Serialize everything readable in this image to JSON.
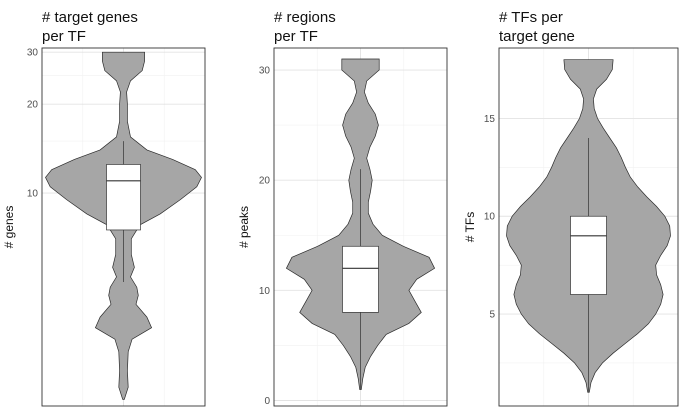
{
  "chart_data": [
    {
      "type": "violin",
      "title_lines": [
        "# target genes",
        "per TF"
      ],
      "ylabel": "# genes",
      "scale": "log",
      "ylim": [
        1.9,
        31
      ],
      "yticks": [
        10,
        20,
        30
      ],
      "ytick_labels": [
        "10",
        "20",
        "30"
      ],
      "grid_major": [
        10,
        20,
        30
      ],
      "grid_minor": [
        15,
        25
      ],
      "violin_range": [
        2,
        30
      ],
      "density": [
        [
          2,
          0.01
        ],
        [
          2.2,
          0.06
        ],
        [
          2.5,
          0.05
        ],
        [
          2.9,
          0.06
        ],
        [
          3.2,
          0.11
        ],
        [
          3.5,
          0.36
        ],
        [
          3.8,
          0.3
        ],
        [
          4.2,
          0.16
        ],
        [
          4.5,
          0.19
        ],
        [
          4.8,
          0.17
        ],
        [
          5.2,
          0.09
        ],
        [
          5.6,
          0.14
        ],
        [
          6.2,
          0.1
        ],
        [
          7,
          0.1
        ],
        [
          7.8,
          0.21
        ],
        [
          8.5,
          0.47
        ],
        [
          9.5,
          0.73
        ],
        [
          10.5,
          0.94
        ],
        [
          11.3,
          1.0
        ],
        [
          12,
          0.92
        ],
        [
          13,
          0.63
        ],
        [
          14,
          0.3
        ],
        [
          15.5,
          0.09
        ],
        [
          17.5,
          0.05
        ],
        [
          20,
          0.05
        ],
        [
          22,
          0.04
        ],
        [
          24,
          0.09
        ],
        [
          26,
          0.24
        ],
        [
          28,
          0.27
        ],
        [
          30,
          0.27
        ]
      ],
      "box": {
        "whisker_low": 5,
        "q1": 7.5,
        "median": 11,
        "q3": 12.5,
        "whisker_high": 15
      }
    },
    {
      "type": "violin",
      "title_lines": [
        "# regions",
        "per TF"
      ],
      "ylabel": "# peaks",
      "scale": "linear",
      "ylim": [
        -0.5,
        32
      ],
      "yticks": [
        0,
        10,
        20,
        30
      ],
      "ytick_labels": [
        "0",
        "10",
        "20",
        "30"
      ],
      "grid_major": [
        0,
        10,
        20,
        30
      ],
      "grid_minor": [
        5,
        15,
        25
      ],
      "violin_range": [
        1,
        31
      ],
      "density": [
        [
          1,
          0.01
        ],
        [
          2,
          0.03
        ],
        [
          3,
          0.06
        ],
        [
          4,
          0.13
        ],
        [
          5,
          0.22
        ],
        [
          6,
          0.33
        ],
        [
          7,
          0.62
        ],
        [
          8,
          0.78
        ],
        [
          9,
          0.7
        ],
        [
          10,
          0.62
        ],
        [
          11,
          0.72
        ],
        [
          12,
          0.95
        ],
        [
          13,
          0.88
        ],
        [
          14,
          0.55
        ],
        [
          15,
          0.28
        ],
        [
          16,
          0.16
        ],
        [
          17,
          0.1
        ],
        [
          18,
          0.1
        ],
        [
          19,
          0.13
        ],
        [
          20,
          0.15
        ],
        [
          21,
          0.12
        ],
        [
          22,
          0.08
        ],
        [
          23,
          0.12
        ],
        [
          24,
          0.19
        ],
        [
          25,
          0.23
        ],
        [
          26,
          0.19
        ],
        [
          27,
          0.1
        ],
        [
          28,
          0.05
        ],
        [
          29,
          0.08
        ],
        [
          30,
          0.24
        ],
        [
          31,
          0.24
        ]
      ],
      "box": {
        "whisker_low": 1,
        "q1": 8,
        "median": 12,
        "q3": 14,
        "whisker_high": 21
      }
    },
    {
      "type": "violin",
      "title_lines": [
        "# TFs per",
        "target gene"
      ],
      "ylabel": "# TFs",
      "scale": "linear",
      "ylim": [
        0.3,
        18.6
      ],
      "yticks": [
        5,
        10,
        15
      ],
      "ytick_labels": [
        "5",
        "10",
        "15"
      ],
      "grid_major": [
        5,
        10,
        15
      ],
      "grid_minor": [
        2.5,
        7.5,
        12.5
      ],
      "violin_range": [
        1,
        18
      ],
      "density": [
        [
          1,
          0.01
        ],
        [
          1.5,
          0.03
        ],
        [
          2,
          0.08
        ],
        [
          2.5,
          0.17
        ],
        [
          3,
          0.3
        ],
        [
          3.5,
          0.45
        ],
        [
          4,
          0.6
        ],
        [
          4.5,
          0.73
        ],
        [
          5,
          0.82
        ],
        [
          5.5,
          0.88
        ],
        [
          6,
          0.91
        ],
        [
          6.5,
          0.88
        ],
        [
          7,
          0.83
        ],
        [
          7.5,
          0.82
        ],
        [
          8,
          0.88
        ],
        [
          8.5,
          0.96
        ],
        [
          9,
          1.0
        ],
        [
          9.5,
          0.99
        ],
        [
          10,
          0.93
        ],
        [
          10.5,
          0.83
        ],
        [
          11,
          0.71
        ],
        [
          11.5,
          0.6
        ],
        [
          12,
          0.51
        ],
        [
          12.5,
          0.45
        ],
        [
          13,
          0.4
        ],
        [
          13.5,
          0.34
        ],
        [
          14,
          0.26
        ],
        [
          14.5,
          0.18
        ],
        [
          15,
          0.11
        ],
        [
          15.5,
          0.07
        ],
        [
          16,
          0.06
        ],
        [
          16.5,
          0.1
        ],
        [
          17,
          0.22
        ],
        [
          17.5,
          0.29
        ],
        [
          18,
          0.3
        ]
      ],
      "box": {
        "whisker_low": 1,
        "q1": 6,
        "median": 9,
        "q3": 10,
        "whisker_high": 14
      }
    }
  ]
}
